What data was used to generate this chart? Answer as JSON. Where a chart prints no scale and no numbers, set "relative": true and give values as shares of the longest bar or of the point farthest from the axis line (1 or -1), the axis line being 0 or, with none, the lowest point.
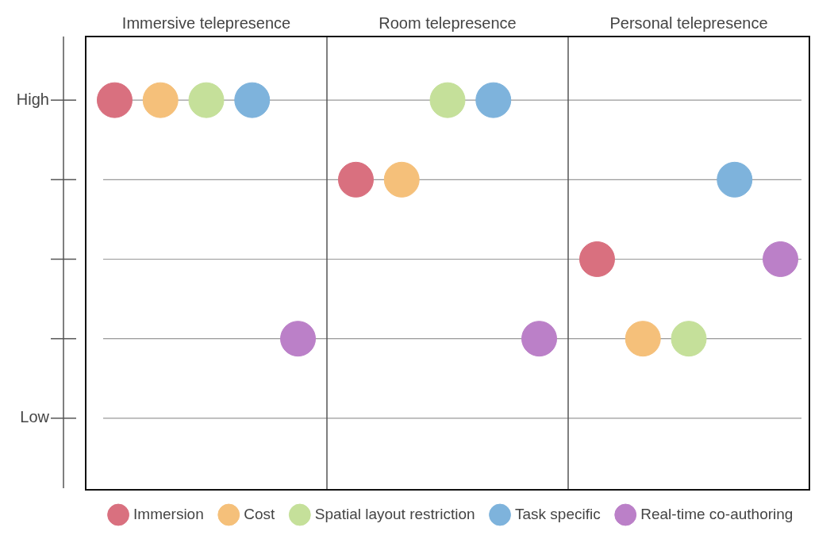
{
  "chart_data": {
    "type": "scatter",
    "relative": true,
    "categories": [
      "Immersive telepresence",
      "Room telepresence",
      "Personal telepresence"
    ],
    "grid": true,
    "legend": "bottom",
    "marker": "circle",
    "annotations": [
      "High",
      "Low"
    ],
    "series": [
      {
        "name": "Immersion",
        "color": "#d9707f",
        "values": [
          1,
          0.75,
          0.5
        ]
      },
      {
        "name": "Cost",
        "color": "#f5c07a",
        "values": [
          1,
          0.75,
          0.25
        ]
      },
      {
        "name": "Spatial layout restriction",
        "color": "#c5e09a",
        "values": [
          1,
          1,
          0.25
        ]
      },
      {
        "name": "Task specific",
        "color": "#7eb3dc",
        "values": [
          1,
          1,
          0.75
        ]
      },
      {
        "name": "Real-time co-authoring",
        "color": "#bb80c8",
        "values": [
          0.25,
          0.25,
          0.5
        ]
      }
    ]
  }
}
